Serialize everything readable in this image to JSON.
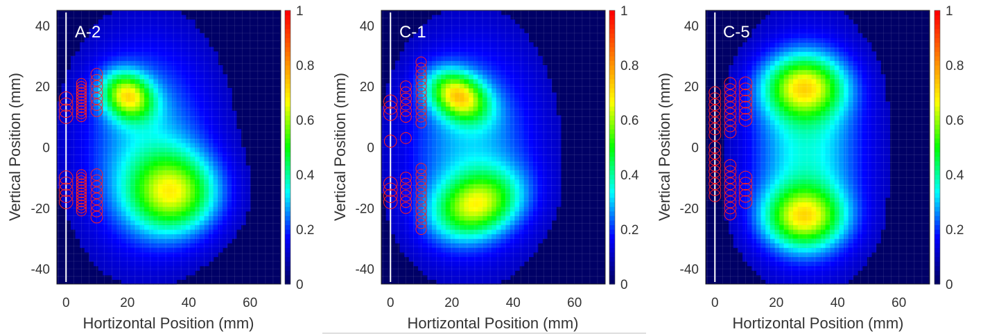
{
  "figure": {
    "divider_color": "#bbbbbb"
  },
  "colormap": [
    "#000066",
    "#0000ff",
    "#00ffff",
    "#00ff00",
    "#ffff00",
    "#ff7f00",
    "#ff0000"
  ],
  "chart_data": [
    {
      "type": "heatmap",
      "title": "A-2",
      "xlabel": "Hortizontal Position (mm)",
      "ylabel": "Vertical Position (mm)",
      "xlim": [
        -3,
        70
      ],
      "ylim": [
        -45,
        45
      ],
      "xticks": [
        0,
        20,
        40,
        60
      ],
      "yticks": [
        -40,
        -20,
        0,
        20,
        40
      ],
      "colorbar": {
        "range": [
          0,
          1
        ],
        "ticks": [
          "0",
          "0.2",
          "0.4",
          "0.6",
          "0.8",
          "1"
        ]
      },
      "grid": true,
      "marker_line_x": 0,
      "intensity_blobs": [
        {
          "cx": 20,
          "cy": 17,
          "sx": 6,
          "sy": 5,
          "rot": -35,
          "peak": 0.52
        },
        {
          "cx": 35,
          "cy": -15,
          "sx": 10,
          "sy": 9,
          "rot": 0,
          "peak": 0.5
        },
        {
          "cx": 26,
          "cy": 1,
          "sx": 15,
          "sy": 24,
          "rot": 0,
          "peak": 0.24
        }
      ],
      "markers": {
        "color": "#ff2020",
        "columns": [
          {
            "x": 0,
            "groups": [
              {
                "y": [
                  10,
                  12,
                  14,
                  16
                ],
                "r": 2.2
              },
              {
                "y": [
                  -18,
                  -16,
                  -14,
                  -12,
                  -10
                ],
                "r": 2.2
              }
            ]
          },
          {
            "x": 5,
            "groups": [
              {
                "y": [
                  10,
                  11,
                  12,
                  13,
                  14,
                  15,
                  16,
                  17,
                  18,
                  19,
                  20,
                  21
                ],
                "r": 1.6
              },
              {
                "y": [
                  -21,
                  -20,
                  -19,
                  -18,
                  -17,
                  -16,
                  -15,
                  -14,
                  -13,
                  -12,
                  -11,
                  -10,
                  -9
                ],
                "r": 1.6
              }
            ]
          },
          {
            "x": 10,
            "groups": [
              {
                "y": [
                  12,
                  14,
                  16,
                  18,
                  20,
                  22,
                  24
                ],
                "r": 1.9
              },
              {
                "y": [
                  -23,
                  -21,
                  -19,
                  -17,
                  -15,
                  -13,
                  -11,
                  -9
                ],
                "r": 1.9
              }
            ]
          }
        ]
      }
    },
    {
      "type": "heatmap",
      "title": "C-1",
      "xlabel": "Hortizontal Position (mm)",
      "ylabel": "Vertical Position (mm)",
      "xlim": [
        -3,
        70
      ],
      "ylim": [
        -45,
        45
      ],
      "xticks": [
        0,
        20,
        40,
        60
      ],
      "yticks": [
        -40,
        -20,
        0,
        20,
        40
      ],
      "colorbar": {
        "range": [
          0,
          1
        ],
        "ticks": [
          "0",
          "0.2",
          "0.4",
          "0.6",
          "0.8",
          "1"
        ]
      },
      "grid": true,
      "marker_line_x": 0,
      "intensity_blobs": [
        {
          "cx": 22,
          "cy": 17,
          "sx": 7,
          "sy": 5,
          "rot": -30,
          "peak": 0.55
        },
        {
          "cx": 28,
          "cy": -19,
          "sx": 10,
          "sy": 7,
          "rot": 20,
          "peak": 0.48
        },
        {
          "cx": 26,
          "cy": 0,
          "sx": 15,
          "sy": 24,
          "rot": 0,
          "peak": 0.24
        }
      ],
      "markers": {
        "color": "#ff2020",
        "columns": [
          {
            "x": 0,
            "groups": [
              {
                "y": [
                  11,
                  13,
                  15
                ],
                "r": 2.2
              },
              {
                "y": [
                  2
                ],
                "r": 2.0
              },
              {
                "y": [
                  -18,
                  -16,
                  -14,
                  -12
                ],
                "r": 2.2
              }
            ]
          },
          {
            "x": 5,
            "groups": [
              {
                "y": [
                  10,
                  12,
                  14,
                  16,
                  18,
                  20
                ],
                "r": 1.8
              },
              {
                "y": [
                  3
                ],
                "r": 1.8
              },
              {
                "y": [
                  -20,
                  -18,
                  -16,
                  -14,
                  -12,
                  -10
                ],
                "r": 1.8
              }
            ]
          },
          {
            "x": 10,
            "groups": [
              {
                "y": [
                  8,
                  10,
                  12,
                  14,
                  16,
                  18,
                  20,
                  22,
                  24,
                  26,
                  28
                ],
                "r": 1.7
              },
              {
                "y": [
                  -27,
                  -25,
                  -23,
                  -21,
                  -19,
                  -17,
                  -15,
                  -13,
                  -11,
                  -9,
                  -7
                ],
                "r": 1.7
              }
            ]
          }
        ]
      }
    },
    {
      "type": "heatmap",
      "title": "C-5",
      "xlabel": "Hortizontal Position (mm)",
      "ylabel": "Vertical Position (mm)",
      "xlim": [
        -3,
        70
      ],
      "ylim": [
        -45,
        45
      ],
      "xticks": [
        0,
        20,
        40,
        60
      ],
      "yticks": [
        -40,
        -20,
        0,
        20,
        40
      ],
      "colorbar": {
        "range": [
          0,
          1
        ],
        "ticks": [
          "0",
          "0.2",
          "0.4",
          "0.6",
          "0.8",
          "1"
        ]
      },
      "grid": true,
      "marker_line_x": 0,
      "intensity_blobs": [
        {
          "cx": 29,
          "cy": 20,
          "sx": 9,
          "sy": 7,
          "rot": 0,
          "peak": 0.5
        },
        {
          "cx": 29,
          "cy": -23,
          "sx": 9,
          "sy": 7,
          "rot": 0,
          "peak": 0.5
        },
        {
          "cx": 30,
          "cy": -1,
          "sx": 13,
          "sy": 24,
          "rot": 0,
          "peak": 0.3
        }
      ],
      "markers": {
        "color": "#ff2020",
        "columns": [
          {
            "x": 0,
            "groups": [
              {
                "y": [
                  4,
                  6,
                  8,
                  10,
                  12,
                  14,
                  16,
                  18
                ],
                "r": 1.9
              },
              {
                "y": [
                  -16,
                  -14,
                  -12,
                  -10,
                  -8,
                  -6,
                  -4,
                  -2,
                  0
                ],
                "r": 1.9
              }
            ]
          },
          {
            "x": 5,
            "groups": [
              {
                "y": [
                  5,
                  7,
                  9,
                  11,
                  13,
                  15,
                  17,
                  19,
                  21
                ],
                "r": 1.9
              },
              {
                "y": [
                  -22,
                  -20,
                  -18,
                  -16,
                  -14,
                  -12,
                  -10,
                  -8,
                  -6
                ],
                "r": 1.9
              }
            ]
          },
          {
            "x": 10,
            "groups": [
              {
                "y": [
                  9,
                  11,
                  13,
                  15,
                  17,
                  19,
                  21
                ],
                "r": 2.1
              },
              {
                "y": [
                  -18,
                  -16,
                  -14,
                  -12,
                  -10
                ],
                "r": 2.1
              }
            ]
          }
        ]
      }
    }
  ]
}
